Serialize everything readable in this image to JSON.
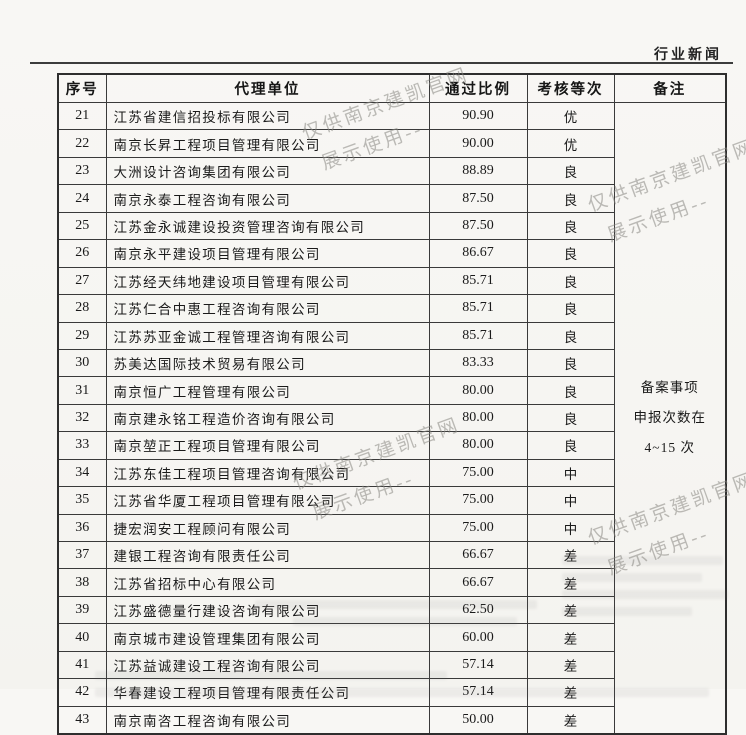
{
  "page": {
    "section_label": "行业新闻"
  },
  "watermark": {
    "line1": "仅供南京建凯官网",
    "line2": "展示使用--"
  },
  "table": {
    "headers": [
      "序号",
      "代理单位",
      "通过比例",
      "考核等次",
      "备注"
    ],
    "remark": {
      "lines": [
        "备案事项",
        "申报次数在",
        "4~15 次"
      ]
    },
    "rows": [
      {
        "no": "21",
        "agency": "江苏省建信招投标有限公司",
        "ratio": "90.90",
        "grade": "优"
      },
      {
        "no": "22",
        "agency": "南京长昇工程项目管理有限公司",
        "ratio": "90.00",
        "grade": "优"
      },
      {
        "no": "23",
        "agency": "大洲设计咨询集团有限公司",
        "ratio": "88.89",
        "grade": "良"
      },
      {
        "no": "24",
        "agency": "南京永泰工程咨询有限公司",
        "ratio": "87.50",
        "grade": "良"
      },
      {
        "no": "25",
        "agency": "江苏金永诚建设投资管理咨询有限公司",
        "ratio": "87.50",
        "grade": "良"
      },
      {
        "no": "26",
        "agency": "南京永平建设项目管理有限公司",
        "ratio": "86.67",
        "grade": "良"
      },
      {
        "no": "27",
        "agency": "江苏经天纬地建设项目管理有限公司",
        "ratio": "85.71",
        "grade": "良"
      },
      {
        "no": "28",
        "agency": "江苏仁合中惠工程咨询有限公司",
        "ratio": "85.71",
        "grade": "良"
      },
      {
        "no": "29",
        "agency": "江苏苏亚金诚工程管理咨询有限公司",
        "ratio": "85.71",
        "grade": "良"
      },
      {
        "no": "30",
        "agency": "苏美达国际技术贸易有限公司",
        "ratio": "83.33",
        "grade": "良"
      },
      {
        "no": "31",
        "agency": "南京恒广工程管理有限公司",
        "ratio": "80.00",
        "grade": "良"
      },
      {
        "no": "32",
        "agency": "南京建永铭工程造价咨询有限公司",
        "ratio": "80.00",
        "grade": "良"
      },
      {
        "no": "33",
        "agency": "南京堃正工程项目管理有限公司",
        "ratio": "80.00",
        "grade": "良"
      },
      {
        "no": "34",
        "agency": "江苏东佳工程项目管理咨询有限公司",
        "ratio": "75.00",
        "grade": "中"
      },
      {
        "no": "35",
        "agency": "江苏省华厦工程项目管理有限公司",
        "ratio": "75.00",
        "grade": "中"
      },
      {
        "no": "36",
        "agency": "捷宏润安工程顾问有限公司",
        "ratio": "75.00",
        "grade": "中"
      },
      {
        "no": "37",
        "agency": "建银工程咨询有限责任公司",
        "ratio": "66.67",
        "grade": "差"
      },
      {
        "no": "38",
        "agency": "江苏省招标中心有限公司",
        "ratio": "66.67",
        "grade": "差"
      },
      {
        "no": "39",
        "agency": "江苏盛德量行建设咨询有限公司",
        "ratio": "62.50",
        "grade": "差"
      },
      {
        "no": "40",
        "agency": "南京城市建设管理集团有限公司",
        "ratio": "60.00",
        "grade": "差"
      },
      {
        "no": "41",
        "agency": "江苏益诚建设工程咨询有限公司",
        "ratio": "57.14",
        "grade": "差"
      },
      {
        "no": "42",
        "agency": "华春建设工程项目管理有限责任公司",
        "ratio": "57.14",
        "grade": "差"
      },
      {
        "no": "43",
        "agency": "南京南咨工程咨询有限公司",
        "ratio": "50.00",
        "grade": "差"
      }
    ]
  }
}
